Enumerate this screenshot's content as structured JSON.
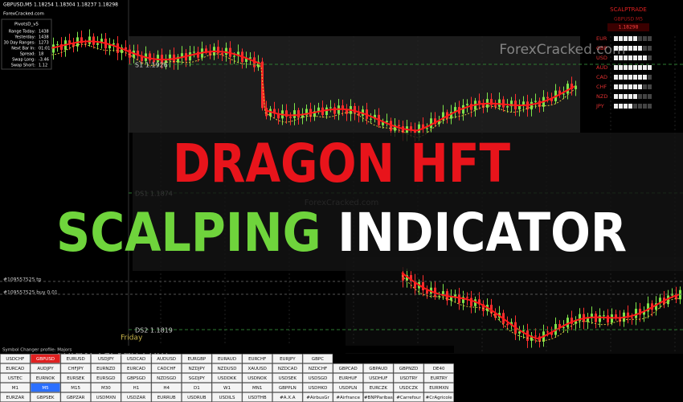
{
  "header": {
    "symbol_info": "GBPUSD,M5  1.18254 1.18304 1.18237 1.18298",
    "site": "ForexCracked.com"
  },
  "pivot_panel": {
    "title": "PivotsD_v5",
    "rows": [
      [
        "Range Today:",
        "1438"
      ],
      [
        "Yesterday:",
        "1438"
      ],
      [
        "30 Day Ranges:",
        "1273"
      ],
      [
        "Next Bar In:",
        "01:01"
      ],
      [
        "Spread:",
        "18"
      ],
      [
        "Swap Long:",
        "-3.46"
      ],
      [
        "Swap Short:",
        "1.12"
      ]
    ]
  },
  "scalptrade": {
    "title": "SCALPTRADE",
    "symbol": "GBPUSD M5",
    "price": "1.18298",
    "currencies": [
      "EUR",
      "GBP",
      "USD",
      "AUD",
      "CAD",
      "CHF",
      "NZD",
      "JPY"
    ]
  },
  "chart_labels": {
    "s1": "S1  1.1926",
    "ds1": "DS1  1.1874",
    "ds2": "DS2  1.1819",
    "day": "Friday",
    "tp": "#109557525 tp",
    "buy": "#109557525 buy 0.01"
  },
  "watermarks": [
    "ForexCracked.com",
    "ForexCracked.com",
    "ForexCracked.com"
  ],
  "headline": {
    "line1": [
      "DRAGON",
      "HFT"
    ],
    "line2": [
      "SCALPING",
      "INDICATOR"
    ]
  },
  "symbol_changer": {
    "title": "Symbol Changer profile: Majors",
    "rows": [
      [
        "USDCHF",
        "GBPUSD",
        "EURUSD",
        "USDJPY",
        "USDCAD",
        "AUDUSD",
        "EURGBP",
        "EURAUD",
        "EURCHF",
        "EURJPY",
        "GBPC"
      ],
      [
        "EURCAD",
        "AUDJPY",
        "CHFJPY",
        "EURNZD",
        "EURCAD",
        "CADCHF",
        "NZDJPY",
        "NZDUSD",
        "XAUUSD",
        "NZDCAD",
        "NZDCHF",
        "GBPCAD",
        "GBPAUD",
        "GBPNZD",
        "DE40"
      ],
      [
        "USTEC",
        "EURNOK",
        "EURSEK",
        "EURSGD",
        "GBPSGD",
        "NZDSGD",
        "SGDJPY",
        "USDDKK",
        "USDNOK",
        "USDSEK",
        "USDSGD",
        "EURHUF",
        "USDHUF",
        "USDTRY",
        "EURTRY"
      ],
      [
        "M1",
        "M5",
        "M15",
        "M30",
        "H1",
        "H4",
        "D1",
        "W1",
        "MN1",
        "GBPPLN",
        "USDHKD",
        "USDPLN",
        "EURCZK",
        "USDCZK",
        "EURMXN"
      ],
      [
        "EURZAR",
        "GBPSEK",
        "GBPZAR",
        "USDMXN",
        "USDZAR",
        "EURRUB",
        "USDRUB",
        "USDILS",
        "USDTHB",
        "#A.X.A",
        "#AirbusGr",
        "#Airfrance",
        "#BNPParibas",
        "#Carrefour",
        "#CrAgricole"
      ]
    ]
  }
}
